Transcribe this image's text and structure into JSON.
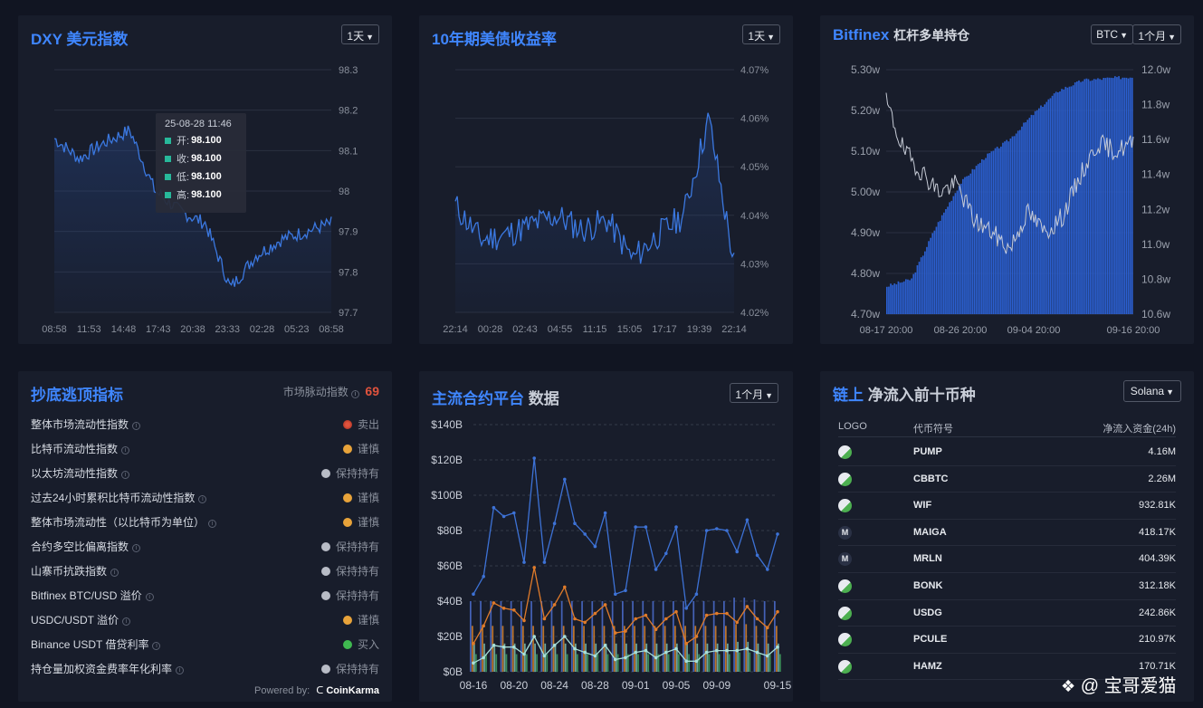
{
  "dxy": {
    "title": "DXY 美元指数",
    "interval": "1天",
    "y_ticks": [
      "98.3",
      "98.2",
      "98.1",
      "98",
      "97.9",
      "97.8",
      "97.7"
    ],
    "x_ticks": [
      "08:58",
      "11:53",
      "14:48",
      "17:43",
      "20:38",
      "23:33",
      "02:28",
      "05:23",
      "08:58"
    ],
    "tooltip": {
      "time": "25-08-28 11:46",
      "open_label": "开:",
      "open": "98.100",
      "close_label": "收:",
      "close": "98.100",
      "low_label": "低:",
      "low": "98.100",
      "high_label": "高:",
      "high": "98.100"
    }
  },
  "treasury": {
    "title": "10年期美债收益率",
    "interval": "1天",
    "y_ticks": [
      "4.07%",
      "4.06%",
      "4.05%",
      "4.04%",
      "4.03%",
      "4.02%"
    ],
    "x_ticks": [
      "22:14",
      "00:28",
      "02:43",
      "04:55",
      "11:15",
      "15:05",
      "17:17",
      "19:39",
      "22:14"
    ]
  },
  "bitfinex": {
    "title": "Bitfinex",
    "subtitle": "杠杆多单持仓",
    "coin": "BTC",
    "interval": "1个月",
    "y_left_ticks": [
      "5.30w",
      "5.20w",
      "5.10w",
      "5.00w",
      "4.90w",
      "4.80w",
      "4.70w"
    ],
    "y_right_ticks": [
      "12.0w",
      "11.8w",
      "11.6w",
      "11.4w",
      "11.2w",
      "11.0w",
      "10.8w",
      "10.6w"
    ],
    "x_ticks": [
      "08-17 20:00",
      "08-26 20:00",
      "09-04 20:00",
      "09-16 20:00"
    ]
  },
  "indicators": {
    "title": "抄底逃顶指标",
    "pulse_label": "市场脉动指数",
    "pulse_value": "69",
    "powered_by": "Powered by:",
    "brand": "CoinKarma",
    "colors": {
      "sell": "#e0533d",
      "caution": "#e8a33a",
      "hold": "#b8bcc6",
      "buy": "#3fb950"
    },
    "items": [
      {
        "name": "整体市场流动性指数",
        "status": "卖出",
        "level": "sell"
      },
      {
        "name": "比特币流动性指数",
        "status": "谨慎",
        "level": "caution"
      },
      {
        "name": "以太坊流动性指数",
        "status": "保持持有",
        "level": "hold"
      },
      {
        "name": "过去24小时累积比特币流动性指数",
        "status": "谨慎",
        "level": "caution"
      },
      {
        "name": "整体市场流动性（以比特币为单位）",
        "status": "谨慎",
        "level": "caution"
      },
      {
        "name": "合约多空比偏离指数",
        "status": "保持持有",
        "level": "hold"
      },
      {
        "name": "山寨币抗跌指数",
        "status": "保持持有",
        "level": "hold"
      },
      {
        "name": "Bitfinex BTC/USD 溢价",
        "status": "保持持有",
        "level": "hold"
      },
      {
        "name": "USDC/USDT 溢价",
        "status": "谨慎",
        "level": "caution"
      },
      {
        "name": "Binance USDT 借贷利率",
        "status": "买入",
        "level": "buy"
      },
      {
        "name": "持仓量加权资金费率年化利率",
        "status": "保持持有",
        "level": "hold"
      }
    ]
  },
  "futures": {
    "title_a": "主流合约平台",
    "title_b": "数据",
    "interval": "1个月"
  },
  "chart_data": {
    "type": "bar",
    "categories": [
      "08-16",
      "08-17",
      "08-18",
      "08-19",
      "08-20",
      "08-21",
      "08-22",
      "08-23",
      "08-24",
      "08-25",
      "08-26",
      "08-27",
      "08-28",
      "08-29",
      "08-30",
      "08-31",
      "09-01",
      "09-02",
      "09-03",
      "09-04",
      "09-05",
      "09-06",
      "09-07",
      "09-08",
      "09-09",
      "09-10",
      "09-11",
      "09-12",
      "09-13",
      "09-14",
      "09-15"
    ],
    "x_tick_labels": [
      "08-16",
      "08-20",
      "08-24",
      "08-28",
      "09-01",
      "09-05",
      "09-09",
      "09-15"
    ],
    "y_tick_labels": [
      "$0B",
      "$20B",
      "$40B",
      "$60B",
      "$80B",
      "$100B",
      "$120B",
      "$140B"
    ],
    "ylim": [
      0,
      140
    ],
    "line_series": [
      {
        "color": "#3d72d6",
        "values": [
          44,
          54,
          93,
          88,
          90,
          62,
          121,
          62,
          84,
          109,
          84,
          78,
          71,
          90,
          44,
          46,
          82,
          82,
          58,
          67,
          82,
          36,
          44,
          80,
          81,
          80,
          68,
          86,
          66,
          58,
          78
        ]
      },
      {
        "color": "#e07b2a",
        "values": [
          16,
          26,
          39,
          36,
          35,
          29,
          59,
          30,
          38,
          48,
          30,
          28,
          33,
          38,
          22,
          23,
          30,
          32,
          24,
          30,
          34,
          16,
          20,
          32,
          33,
          33,
          28,
          37,
          30,
          25,
          34
        ]
      },
      {
        "color": "#a8e0d8",
        "values": [
          5,
          8,
          15,
          14,
          14,
          10,
          20,
          9,
          15,
          20,
          13,
          11,
          9,
          15,
          7,
          8,
          11,
          12,
          8,
          11,
          13,
          6,
          6,
          11,
          12,
          12,
          12,
          13,
          11,
          9,
          14
        ]
      }
    ],
    "bar_series": [
      {
        "color": "#4c6fd0",
        "values": [
          40,
          40,
          40,
          40,
          40,
          40,
          40,
          40,
          40,
          40,
          40,
          40,
          40,
          40,
          40,
          40,
          40,
          40,
          40,
          40,
          40,
          40,
          40,
          40,
          40,
          40,
          42,
          42,
          41,
          40,
          40
        ]
      },
      {
        "color": "#d9822b",
        "values": [
          26,
          26,
          26,
          26,
          26,
          26,
          26,
          26,
          26,
          26,
          26,
          26,
          26,
          26,
          26,
          26,
          26,
          26,
          26,
          26,
          26,
          26,
          26,
          26,
          26,
          26,
          27,
          27,
          26,
          26,
          26
        ]
      },
      {
        "color": "#7cc0b0",
        "values": [
          16,
          16,
          16,
          16,
          16,
          16,
          16,
          16,
          16,
          16,
          16,
          16,
          16,
          16,
          16,
          16,
          16,
          16,
          16,
          16,
          16,
          16,
          16,
          16,
          16,
          16,
          17,
          17,
          16,
          16,
          16
        ]
      },
      {
        "color": "#3fa060",
        "values": [
          10,
          10,
          10,
          10,
          10,
          10,
          10,
          10,
          10,
          10,
          10,
          10,
          10,
          10,
          10,
          10,
          10,
          10,
          10,
          10,
          10,
          10,
          10,
          10,
          10,
          10,
          11,
          11,
          10,
          10,
          10
        ]
      }
    ]
  },
  "onchain": {
    "title_a": "链上",
    "title_b": "净流入前十币种",
    "network": "Solana",
    "col_logo": "LOGO",
    "col_symbol": "代币符号",
    "col_inflow": "净流入资金(24h)",
    "rows": [
      {
        "logo": "",
        "symbol": "PUMP",
        "inflow": "4.16M"
      },
      {
        "logo": "",
        "symbol": "CBBTC",
        "inflow": "2.26M"
      },
      {
        "logo": "",
        "symbol": "WIF",
        "inflow": "932.81K"
      },
      {
        "logo": "M",
        "symbol": "MAIGA",
        "inflow": "418.17K"
      },
      {
        "logo": "M",
        "symbol": "MRLN",
        "inflow": "404.39K"
      },
      {
        "logo": "",
        "symbol": "BONK",
        "inflow": "312.18K"
      },
      {
        "logo": "",
        "symbol": "USDG",
        "inflow": "242.86K"
      },
      {
        "logo": "",
        "symbol": "PCULE",
        "inflow": "210.97K"
      },
      {
        "logo": "",
        "symbol": "HAMZ",
        "inflow": "170.71K"
      }
    ]
  },
  "watermark": "@ 宝哥爱猫"
}
